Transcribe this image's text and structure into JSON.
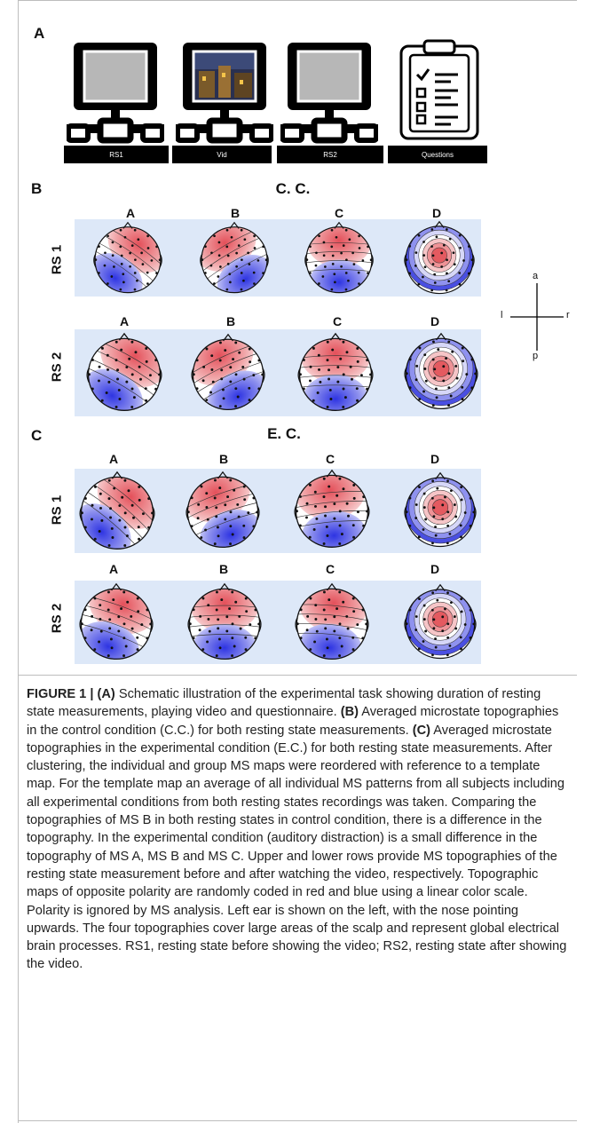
{
  "panel_a": {
    "letter": "A",
    "labels": [
      "RS1",
      "Vid",
      "RS2",
      "Questions"
    ]
  },
  "panel_b": {
    "letter": "B",
    "title": "C. C.",
    "columns": [
      "A",
      "B",
      "C",
      "D"
    ],
    "rows": [
      "RS 1",
      "RS 2"
    ]
  },
  "panel_c": {
    "letter": "C",
    "title": "E. C.",
    "columns": [
      "A",
      "B",
      "C",
      "D"
    ],
    "rows": [
      "RS 1",
      "RS 2"
    ]
  },
  "compass": {
    "anterior": "a",
    "posterior": "p",
    "left": "l",
    "right": "r"
  },
  "colors": {
    "positive": "#e0545a",
    "negative": "#3a3ee0",
    "strip": "#dde8f8"
  },
  "caption": {
    "figure": "FIGURE 1 |",
    "a_tag": "(A)",
    "a_text": " Schematic illustration of the experimental task showing duration of resting state measurements, playing video and questionnaire. ",
    "b_tag": "(B)",
    "b_text": " Averaged microstate topographies in the control condition (C.C.) for both resting state measurements. ",
    "c_tag": "(C)",
    "c_text": " Averaged microstate topographies in the experimental condition (E.C.) for both resting state measurements. After clustering, the individual and group MS maps were reordered with reference to a template map. For the template map an average of all individual MS patterns from all subjects including all experimental conditions from both resting states recordings was taken. Comparing the topographies of MS B in both resting states in control condition, there is a difference in the topography. In the experimental condition (auditory distraction) is a small difference in the topography of MS A, MS B and MS C. Upper and lower rows provide MS topographies of the resting state measurement before and after watching the video, respectively. Topographic maps of opposite polarity are randomly coded in red and blue using a linear color scale. Polarity is ignored by MS analysis. Left ear is shown on the left, with the nose pointing upwards. The four topographies cover large areas of the scalp and represent global electrical brain processes. RS1, resting state before showing the video; RS2, resting state after showing the video."
  }
}
